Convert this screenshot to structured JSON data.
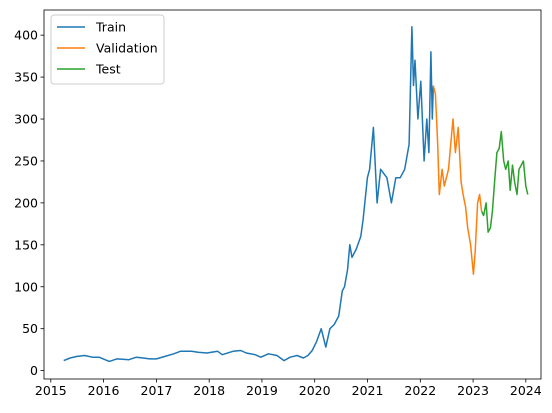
{
  "chart_data": {
    "type": "line",
    "title": "",
    "xlabel": "",
    "ylabel": "",
    "x_type": "date",
    "xlim": [
      "2014-11-15",
      "2024-04-15"
    ],
    "ylim": [
      -10,
      430
    ],
    "grid": false,
    "legend_placement": "top-left",
    "x_ticks": [
      {
        "value": "2015-01-01",
        "label": "2015"
      },
      {
        "value": "2016-01-01",
        "label": "2016"
      },
      {
        "value": "2017-01-01",
        "label": "2017"
      },
      {
        "value": "2018-01-01",
        "label": "2018"
      },
      {
        "value": "2019-01-01",
        "label": "2019"
      },
      {
        "value": "2020-01-01",
        "label": "2020"
      },
      {
        "value": "2021-01-01",
        "label": "2021"
      },
      {
        "value": "2022-01-01",
        "label": "2022"
      },
      {
        "value": "2023-01-01",
        "label": "2023"
      },
      {
        "value": "2024-01-01",
        "label": "2024"
      }
    ],
    "y_ticks": [
      {
        "value": 0,
        "label": "0"
      },
      {
        "value": 50,
        "label": "50"
      },
      {
        "value": 100,
        "label": "100"
      },
      {
        "value": 150,
        "label": "150"
      },
      {
        "value": 200,
        "label": "200"
      },
      {
        "value": 250,
        "label": "250"
      },
      {
        "value": 300,
        "label": "300"
      },
      {
        "value": 350,
        "label": "350"
      },
      {
        "value": 400,
        "label": "400"
      }
    ],
    "series": [
      {
        "name": "Train",
        "color": "#1f77b4",
        "x": [
          "2015-03-31",
          "2015-05-15",
          "2015-07-01",
          "2015-08-24",
          "2015-10-15",
          "2015-12-01",
          "2016-02-10",
          "2016-04-01",
          "2016-06-24",
          "2016-08-15",
          "2016-10-01",
          "2016-11-15",
          "2017-01-01",
          "2017-03-01",
          "2017-05-01",
          "2017-06-15",
          "2017-09-01",
          "2017-10-15",
          "2017-12-15",
          "2018-03-01",
          "2018-04-01",
          "2018-06-15",
          "2018-08-07",
          "2018-09-15",
          "2018-11-15",
          "2018-12-24",
          "2019-02-15",
          "2019-04-15",
          "2019-06-03",
          "2019-07-15",
          "2019-09-01",
          "2019-10-15",
          "2019-11-15",
          "2019-12-15",
          "2020-01-15",
          "2020-02-15",
          "2020-03-18",
          "2020-04-15",
          "2020-05-15",
          "2020-06-15",
          "2020-07-10",
          "2020-07-25",
          "2020-08-15",
          "2020-08-31",
          "2020-09-15",
          "2020-10-15",
          "2020-11-15",
          "2020-12-01",
          "2020-12-31",
          "2021-01-15",
          "2021-02-10",
          "2021-03-08",
          "2021-04-01",
          "2021-05-15",
          "2021-06-15",
          "2021-07-15",
          "2021-08-15",
          "2021-09-15",
          "2021-10-15",
          "2021-11-04",
          "2021-11-15",
          "2021-11-25",
          "2021-12-15",
          "2022-01-04",
          "2022-01-27",
          "2022-02-15",
          "2022-03-01",
          "2022-03-15",
          "2022-03-25",
          "2022-04-01"
        ],
        "values": [
          12,
          15,
          17,
          18,
          16,
          16,
          11,
          14,
          13,
          16,
          15,
          14,
          14,
          17,
          20,
          23,
          23,
          22,
          21,
          23,
          19,
          23,
          24,
          21,
          19,
          16,
          20,
          18,
          12,
          16,
          18,
          15,
          18,
          24,
          35,
          50,
          28,
          50,
          55,
          65,
          95,
          100,
          120,
          150,
          135,
          145,
          160,
          180,
          230,
          240,
          290,
          200,
          240,
          230,
          200,
          230,
          230,
          240,
          270,
          410,
          340,
          370,
          300,
          345,
          250,
          300,
          260,
          380,
          300,
          340
        ]
      },
      {
        "name": "Validation",
        "color": "#ff7f0e",
        "x": [
          "2022-04-01",
          "2022-04-15",
          "2022-05-01",
          "2022-05-12",
          "2022-06-01",
          "2022-06-16",
          "2022-07-15",
          "2022-08-15",
          "2022-09-01",
          "2022-09-20",
          "2022-10-10",
          "2022-10-24",
          "2022-11-10",
          "2022-11-25",
          "2022-12-15",
          "2023-01-03",
          "2023-01-15",
          "2023-02-01",
          "2023-02-15",
          "2023-03-01"
        ],
        "values": [
          340,
          330,
          270,
          210,
          240,
          220,
          240,
          300,
          260,
          290,
          225,
          210,
          195,
          170,
          150,
          115,
          140,
          200,
          210,
          190
        ]
      },
      {
        "name": "Test",
        "color": "#2ca02c",
        "x": [
          "2023-03-01",
          "2023-03-15",
          "2023-04-01",
          "2023-04-15",
          "2023-05-01",
          "2023-05-15",
          "2023-06-01",
          "2023-06-15",
          "2023-07-01",
          "2023-07-15",
          "2023-08-01",
          "2023-08-15",
          "2023-09-01",
          "2023-09-15",
          "2023-10-01",
          "2023-10-15",
          "2023-11-01",
          "2023-11-15",
          "2023-12-01",
          "2023-12-15",
          "2024-01-01",
          "2024-01-15"
        ],
        "values": [
          190,
          185,
          200,
          165,
          170,
          190,
          230,
          260,
          265,
          285,
          250,
          240,
          250,
          215,
          245,
          225,
          210,
          240,
          245,
          250,
          220,
          210
        ]
      }
    ]
  }
}
